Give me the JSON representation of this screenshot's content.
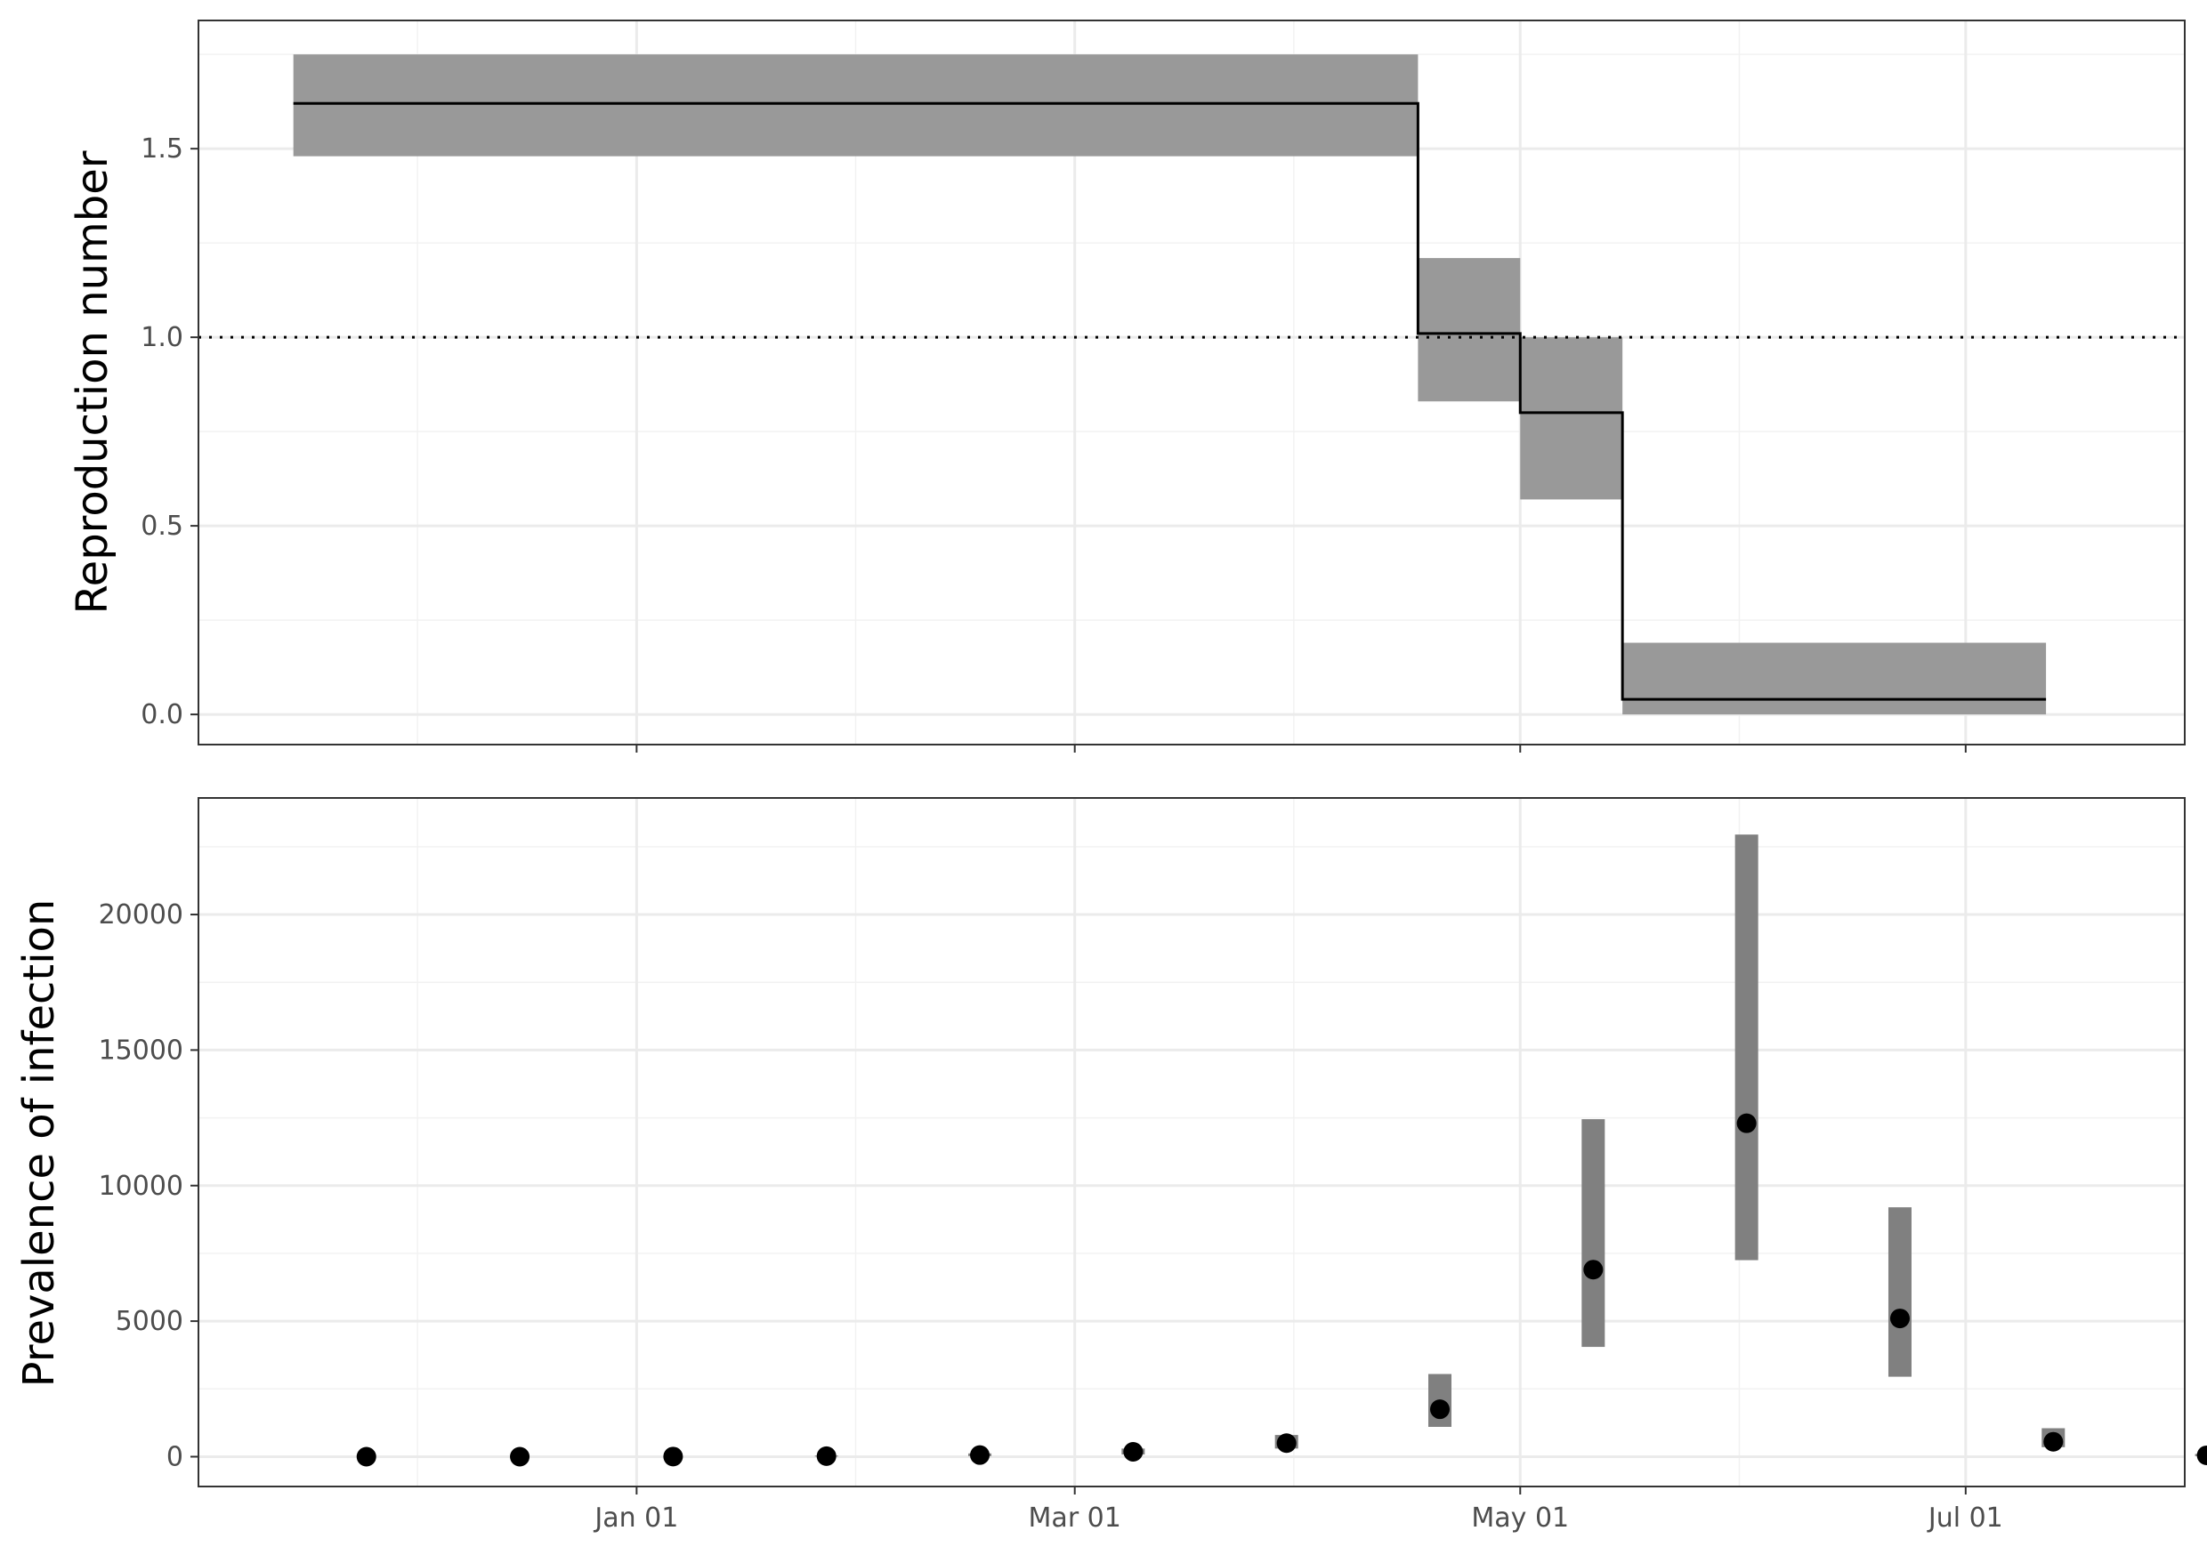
{
  "chart_data": [
    {
      "type": "step",
      "title": "",
      "xlabel": "",
      "ylabel": "Reproduction number",
      "ylim": [
        -0.08,
        1.84
      ],
      "yticks": [
        0.0,
        0.5,
        1.0,
        1.5
      ],
      "ytick_labels": [
        "0.0",
        "0.5",
        "1.0",
        "1.5"
      ],
      "reference_line": {
        "y": 1.0,
        "style": "dotted"
      },
      "grid": true,
      "segments": [
        {
          "start": "2019-11-15",
          "end": "2020-04-17",
          "value": 1.62,
          "lower": 1.48,
          "upper": 1.75
        },
        {
          "start": "2020-04-17",
          "end": "2020-05-01",
          "value": 1.01,
          "lower": 0.83,
          "upper": 1.21
        },
        {
          "start": "2020-05-01",
          "end": "2020-05-15",
          "value": 0.8,
          "lower": 0.57,
          "upper": 1.0
        },
        {
          "start": "2020-05-15",
          "end": "2020-07-12",
          "value": 0.04,
          "lower": 0.0,
          "upper": 0.19
        }
      ]
    },
    {
      "type": "scatter",
      "title": "",
      "xlabel": "",
      "ylabel": "Prevalence of infection",
      "ylim": [
        -1100,
        24300
      ],
      "yticks": [
        0,
        5000,
        10000,
        15000,
        20000
      ],
      "ytick_labels": [
        "0",
        "5000",
        "10000",
        "15000",
        "20000"
      ],
      "grid": true,
      "points": [
        {
          "x": "2019-11-25",
          "y": 0,
          "lower": 0,
          "upper": 0
        },
        {
          "x": "2019-12-16",
          "y": 0,
          "lower": 0,
          "upper": 0
        },
        {
          "x": "2020-01-06",
          "y": 5,
          "lower": 0,
          "upper": 10
        },
        {
          "x": "2020-01-27",
          "y": 20,
          "lower": 5,
          "upper": 40
        },
        {
          "x": "2020-02-17",
          "y": 60,
          "lower": 20,
          "upper": 120
        },
        {
          "x": "2020-03-09",
          "y": 180,
          "lower": 80,
          "upper": 300
        },
        {
          "x": "2020-03-30",
          "y": 500,
          "lower": 300,
          "upper": 800
        },
        {
          "x": "2020-04-20",
          "y": 1750,
          "lower": 1100,
          "upper": 3050
        },
        {
          "x": "2020-05-11",
          "y": 6900,
          "lower": 4050,
          "upper": 12450
        },
        {
          "x": "2020-06-01",
          "y": 12300,
          "lower": 7250,
          "upper": 22950
        },
        {
          "x": "2020-06-22",
          "y": 5100,
          "lower": 2950,
          "upper": 9200
        },
        {
          "x": "2020-07-13",
          "y": 550,
          "lower": 350,
          "upper": 1050
        },
        {
          "x": "2020-08-03",
          "y": 50,
          "lower": 20,
          "upper": 100
        }
      ]
    }
  ],
  "x_axis": {
    "type": "date",
    "range": [
      "2019-11-02",
      "2020-07-31"
    ],
    "ticks": [
      {
        "date": "2020-01-01",
        "label": "Jan 01"
      },
      {
        "date": "2020-03-01",
        "label": "Mar 01"
      },
      {
        "date": "2020-05-01",
        "label": "May 01"
      },
      {
        "date": "2020-07-01",
        "label": "Jul 01"
      }
    ]
  },
  "colors": {
    "ribbon": "#999999",
    "bar": "#808080",
    "line": "#000000",
    "point": "#000000",
    "grid_major": "#ebebeb",
    "grid_minor": "#f2f2f2",
    "panel_border": "#333333",
    "tick_text": "#4d4d4d"
  }
}
